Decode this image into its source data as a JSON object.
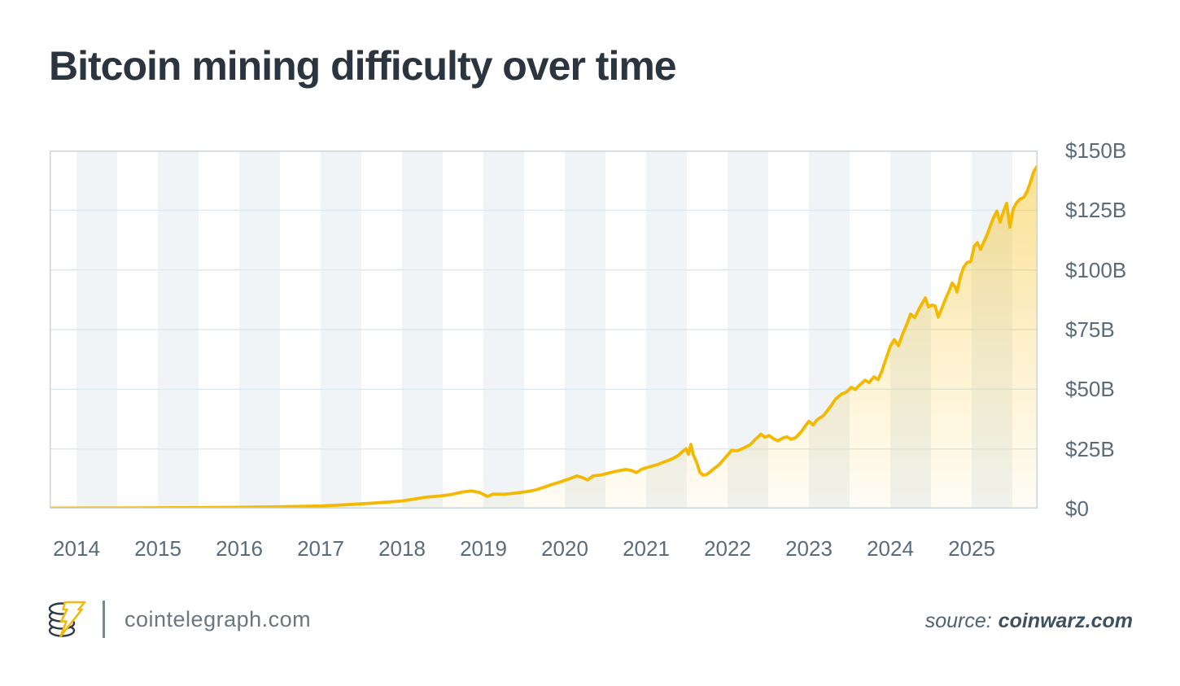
{
  "title": "Bitcoin mining difficulty over time",
  "footer": {
    "site_label": "cointelegraph.com",
    "source_prefix": "source:",
    "source_name": "coinwarz.com"
  },
  "icons": {
    "logo": "cointelegraph-coin-stack-with-lightning-bolt"
  },
  "colors": {
    "line": "#F5B800",
    "area_fill": "#F5B800",
    "stripe": "#F0F4F6",
    "gridline": "#DCE9F0",
    "border": "#CBD5DC",
    "title_text": "#2B3540",
    "axis_text": "#5A6B7A",
    "footer_text": "#6B7680",
    "source_text": "#4E6170",
    "logo_dark": "#2E3A45",
    "logo_yellow": "#F0B90B"
  },
  "chart_data": {
    "type": "area",
    "title": "Bitcoin mining difficulty over time",
    "xlabel": "",
    "ylabel": "",
    "grid": true,
    "legend": "none",
    "x_range": [
      2013.67,
      2025.81
    ],
    "y_range": [
      0,
      150
    ],
    "x_ticks": [
      2014,
      2015,
      2016,
      2017,
      2018,
      2019,
      2020,
      2021,
      2022,
      2023,
      2024,
      2025
    ],
    "y_ticks": [
      {
        "label": "$0",
        "value": 0
      },
      {
        "label": "$25B",
        "value": 25
      },
      {
        "label": "$50B",
        "value": 50
      },
      {
        "label": "$75B",
        "value": 75
      },
      {
        "label": "$100B",
        "value": 100
      },
      {
        "label": "$125B",
        "value": 125
      },
      {
        "label": "$150B",
        "value": 150
      }
    ],
    "series": [
      {
        "name": "mining-difficulty-usd-billions",
        "points": [
          [
            2013.67,
            0.2
          ],
          [
            2014.2,
            0.25
          ],
          [
            2014.8,
            0.3
          ],
          [
            2015.4,
            0.4
          ],
          [
            2016.0,
            0.55
          ],
          [
            2016.5,
            0.75
          ],
          [
            2017.0,
            1.1
          ],
          [
            2017.3,
            1.6
          ],
          [
            2017.6,
            2.2
          ],
          [
            2017.85,
            2.8
          ],
          [
            2018.0,
            3.2
          ],
          [
            2018.15,
            4.0
          ],
          [
            2018.3,
            4.8
          ],
          [
            2018.45,
            5.2
          ],
          [
            2018.6,
            5.9
          ],
          [
            2018.75,
            7.0
          ],
          [
            2018.85,
            7.4
          ],
          [
            2018.95,
            6.8
          ],
          [
            2019.05,
            5.1
          ],
          [
            2019.12,
            6.1
          ],
          [
            2019.25,
            6.0
          ],
          [
            2019.4,
            6.5
          ],
          [
            2019.55,
            7.2
          ],
          [
            2019.65,
            7.9
          ],
          [
            2019.75,
            9.0
          ],
          [
            2019.85,
            10.2
          ],
          [
            2019.95,
            11.2
          ],
          [
            2020.05,
            12.4
          ],
          [
            2020.15,
            13.7
          ],
          [
            2020.22,
            13.0
          ],
          [
            2020.28,
            12.0
          ],
          [
            2020.35,
            13.7
          ],
          [
            2020.45,
            14.1
          ],
          [
            2020.55,
            15.0
          ],
          [
            2020.65,
            15.8
          ],
          [
            2020.75,
            16.4
          ],
          [
            2020.82,
            16.0
          ],
          [
            2020.88,
            15.1
          ],
          [
            2020.95,
            16.6
          ],
          [
            2021.05,
            17.6
          ],
          [
            2021.15,
            18.6
          ],
          [
            2021.25,
            19.9
          ],
          [
            2021.33,
            21.0
          ],
          [
            2021.4,
            22.4
          ],
          [
            2021.45,
            24.0
          ],
          [
            2021.49,
            25.1
          ],
          [
            2021.52,
            22.7
          ],
          [
            2021.55,
            26.9
          ],
          [
            2021.58,
            22.5
          ],
          [
            2021.62,
            19.5
          ],
          [
            2021.66,
            15.2
          ],
          [
            2021.7,
            14.0
          ],
          [
            2021.74,
            14.2
          ],
          [
            2021.79,
            15.5
          ],
          [
            2021.84,
            16.9
          ],
          [
            2021.89,
            18.2
          ],
          [
            2021.94,
            20.1
          ],
          [
            2022.0,
            22.4
          ],
          [
            2022.05,
            24.4
          ],
          [
            2022.12,
            24.2
          ],
          [
            2022.2,
            25.4
          ],
          [
            2022.28,
            26.8
          ],
          [
            2022.35,
            29.3
          ],
          [
            2022.41,
            31.2
          ],
          [
            2022.46,
            29.9
          ],
          [
            2022.51,
            30.6
          ],
          [
            2022.57,
            29.2
          ],
          [
            2022.62,
            28.4
          ],
          [
            2022.68,
            29.6
          ],
          [
            2022.73,
            30.1
          ],
          [
            2022.78,
            29.0
          ],
          [
            2022.84,
            29.8
          ],
          [
            2022.9,
            32.0
          ],
          [
            2022.96,
            34.8
          ],
          [
            2023.0,
            36.6
          ],
          [
            2023.05,
            35.0
          ],
          [
            2023.1,
            37.2
          ],
          [
            2023.18,
            39.0
          ],
          [
            2023.26,
            42.5
          ],
          [
            2023.33,
            46.0
          ],
          [
            2023.4,
            48.0
          ],
          [
            2023.46,
            48.8
          ],
          [
            2023.52,
            50.8
          ],
          [
            2023.57,
            49.9
          ],
          [
            2023.63,
            52.0
          ],
          [
            2023.69,
            53.8
          ],
          [
            2023.74,
            52.8
          ],
          [
            2023.8,
            55.2
          ],
          [
            2023.85,
            54.0
          ],
          [
            2023.9,
            58.0
          ],
          [
            2023.95,
            63.0
          ],
          [
            2024.0,
            68.0
          ],
          [
            2024.05,
            70.8
          ],
          [
            2024.1,
            68.2
          ],
          [
            2024.15,
            73.0
          ],
          [
            2024.2,
            77.0
          ],
          [
            2024.25,
            81.5
          ],
          [
            2024.3,
            80.0
          ],
          [
            2024.35,
            83.5
          ],
          [
            2024.4,
            86.5
          ],
          [
            2024.43,
            88.3
          ],
          [
            2024.47,
            84.5
          ],
          [
            2024.51,
            85.3
          ],
          [
            2024.55,
            85.0
          ],
          [
            2024.59,
            80.2
          ],
          [
            2024.64,
            84.5
          ],
          [
            2024.68,
            88.0
          ],
          [
            2024.72,
            91.0
          ],
          [
            2024.76,
            94.5
          ],
          [
            2024.8,
            92.8
          ],
          [
            2024.82,
            90.7
          ],
          [
            2024.86,
            97.0
          ],
          [
            2024.9,
            101.0
          ],
          [
            2024.94,
            103.0
          ],
          [
            2024.99,
            103.6
          ],
          [
            2025.03,
            109.8
          ],
          [
            2025.07,
            111.4
          ],
          [
            2025.11,
            108.6
          ],
          [
            2025.15,
            111.8
          ],
          [
            2025.19,
            114.8
          ],
          [
            2025.23,
            118.5
          ],
          [
            2025.27,
            122.0
          ],
          [
            2025.31,
            124.6
          ],
          [
            2025.35,
            120.0
          ],
          [
            2025.39,
            124.5
          ],
          [
            2025.43,
            127.9
          ],
          [
            2025.47,
            117.9
          ],
          [
            2025.51,
            125.5
          ],
          [
            2025.55,
            128.0
          ],
          [
            2025.59,
            129.6
          ],
          [
            2025.64,
            130.4
          ],
          [
            2025.68,
            132.8
          ],
          [
            2025.72,
            136.5
          ],
          [
            2025.76,
            141.0
          ],
          [
            2025.8,
            143.3
          ]
        ]
      }
    ]
  }
}
